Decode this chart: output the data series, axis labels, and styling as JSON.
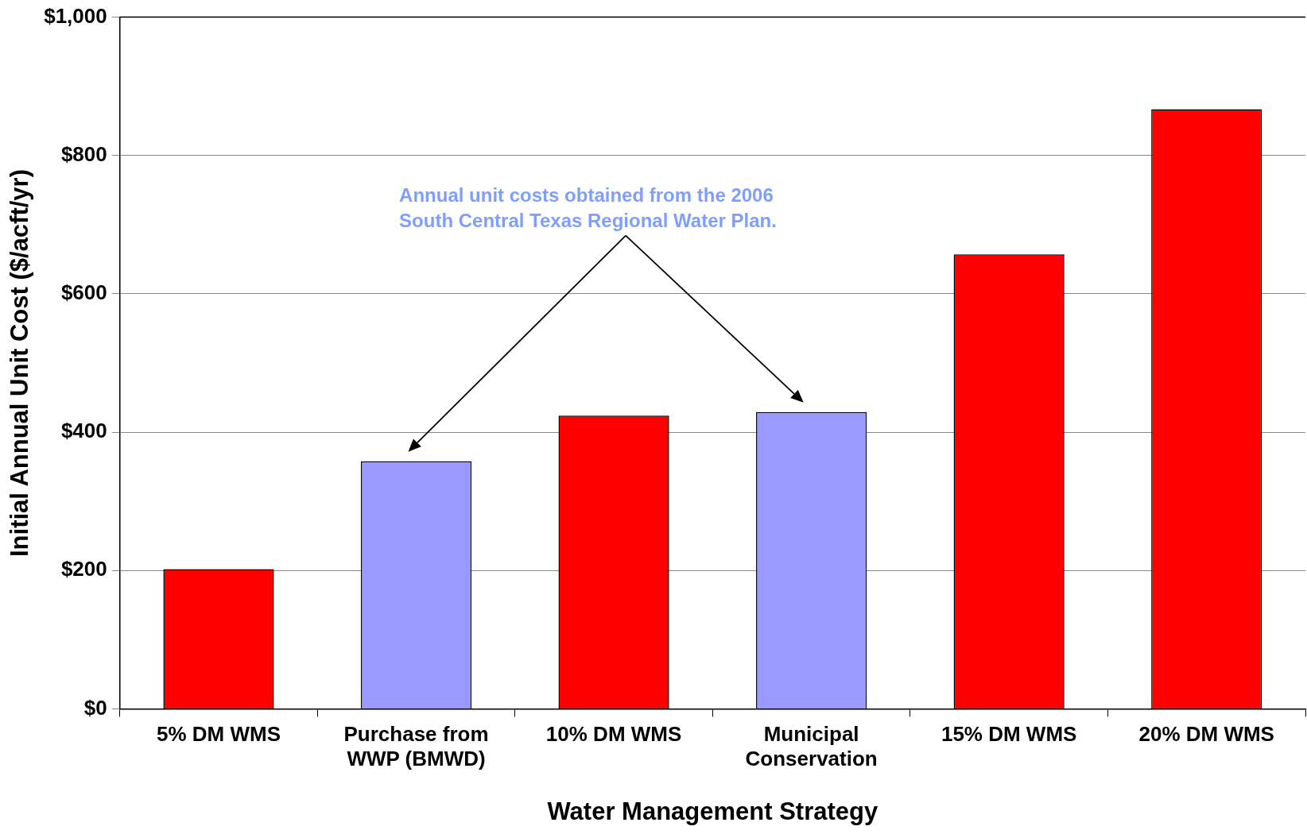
{
  "chart_data": {
    "type": "bar",
    "xlabel": "Water Management Strategy",
    "ylabel": "Initial Annual Unit Cost ($/acft/yr)",
    "categories": [
      "5% DM WMS",
      "Purchase from WWP (BMWD)",
      "10% DM WMS",
      "Municipal Conservation",
      "15% DM WMS",
      "20% DM WMS"
    ],
    "values": [
      202,
      358,
      424,
      429,
      657,
      867
    ],
    "colors": [
      "#ff0000",
      "#9999ff",
      "#ff0000",
      "#9999ff",
      "#ff0000",
      "#ff0000"
    ],
    "ylim": [
      0,
      1000
    ],
    "yticks": [
      {
        "value": 0,
        "label": "$0"
      },
      {
        "value": 200,
        "label": "$200"
      },
      {
        "value": 400,
        "label": "$400"
      },
      {
        "value": 600,
        "label": "$600"
      },
      {
        "value": 800,
        "label": "$800"
      },
      {
        "value": 1000,
        "label": "$1,000"
      }
    ],
    "grid": "y",
    "legend": false,
    "annotations": [
      "Annual unit costs obtained from the 2006 South Central Texas Regional Water Plan."
    ]
  }
}
